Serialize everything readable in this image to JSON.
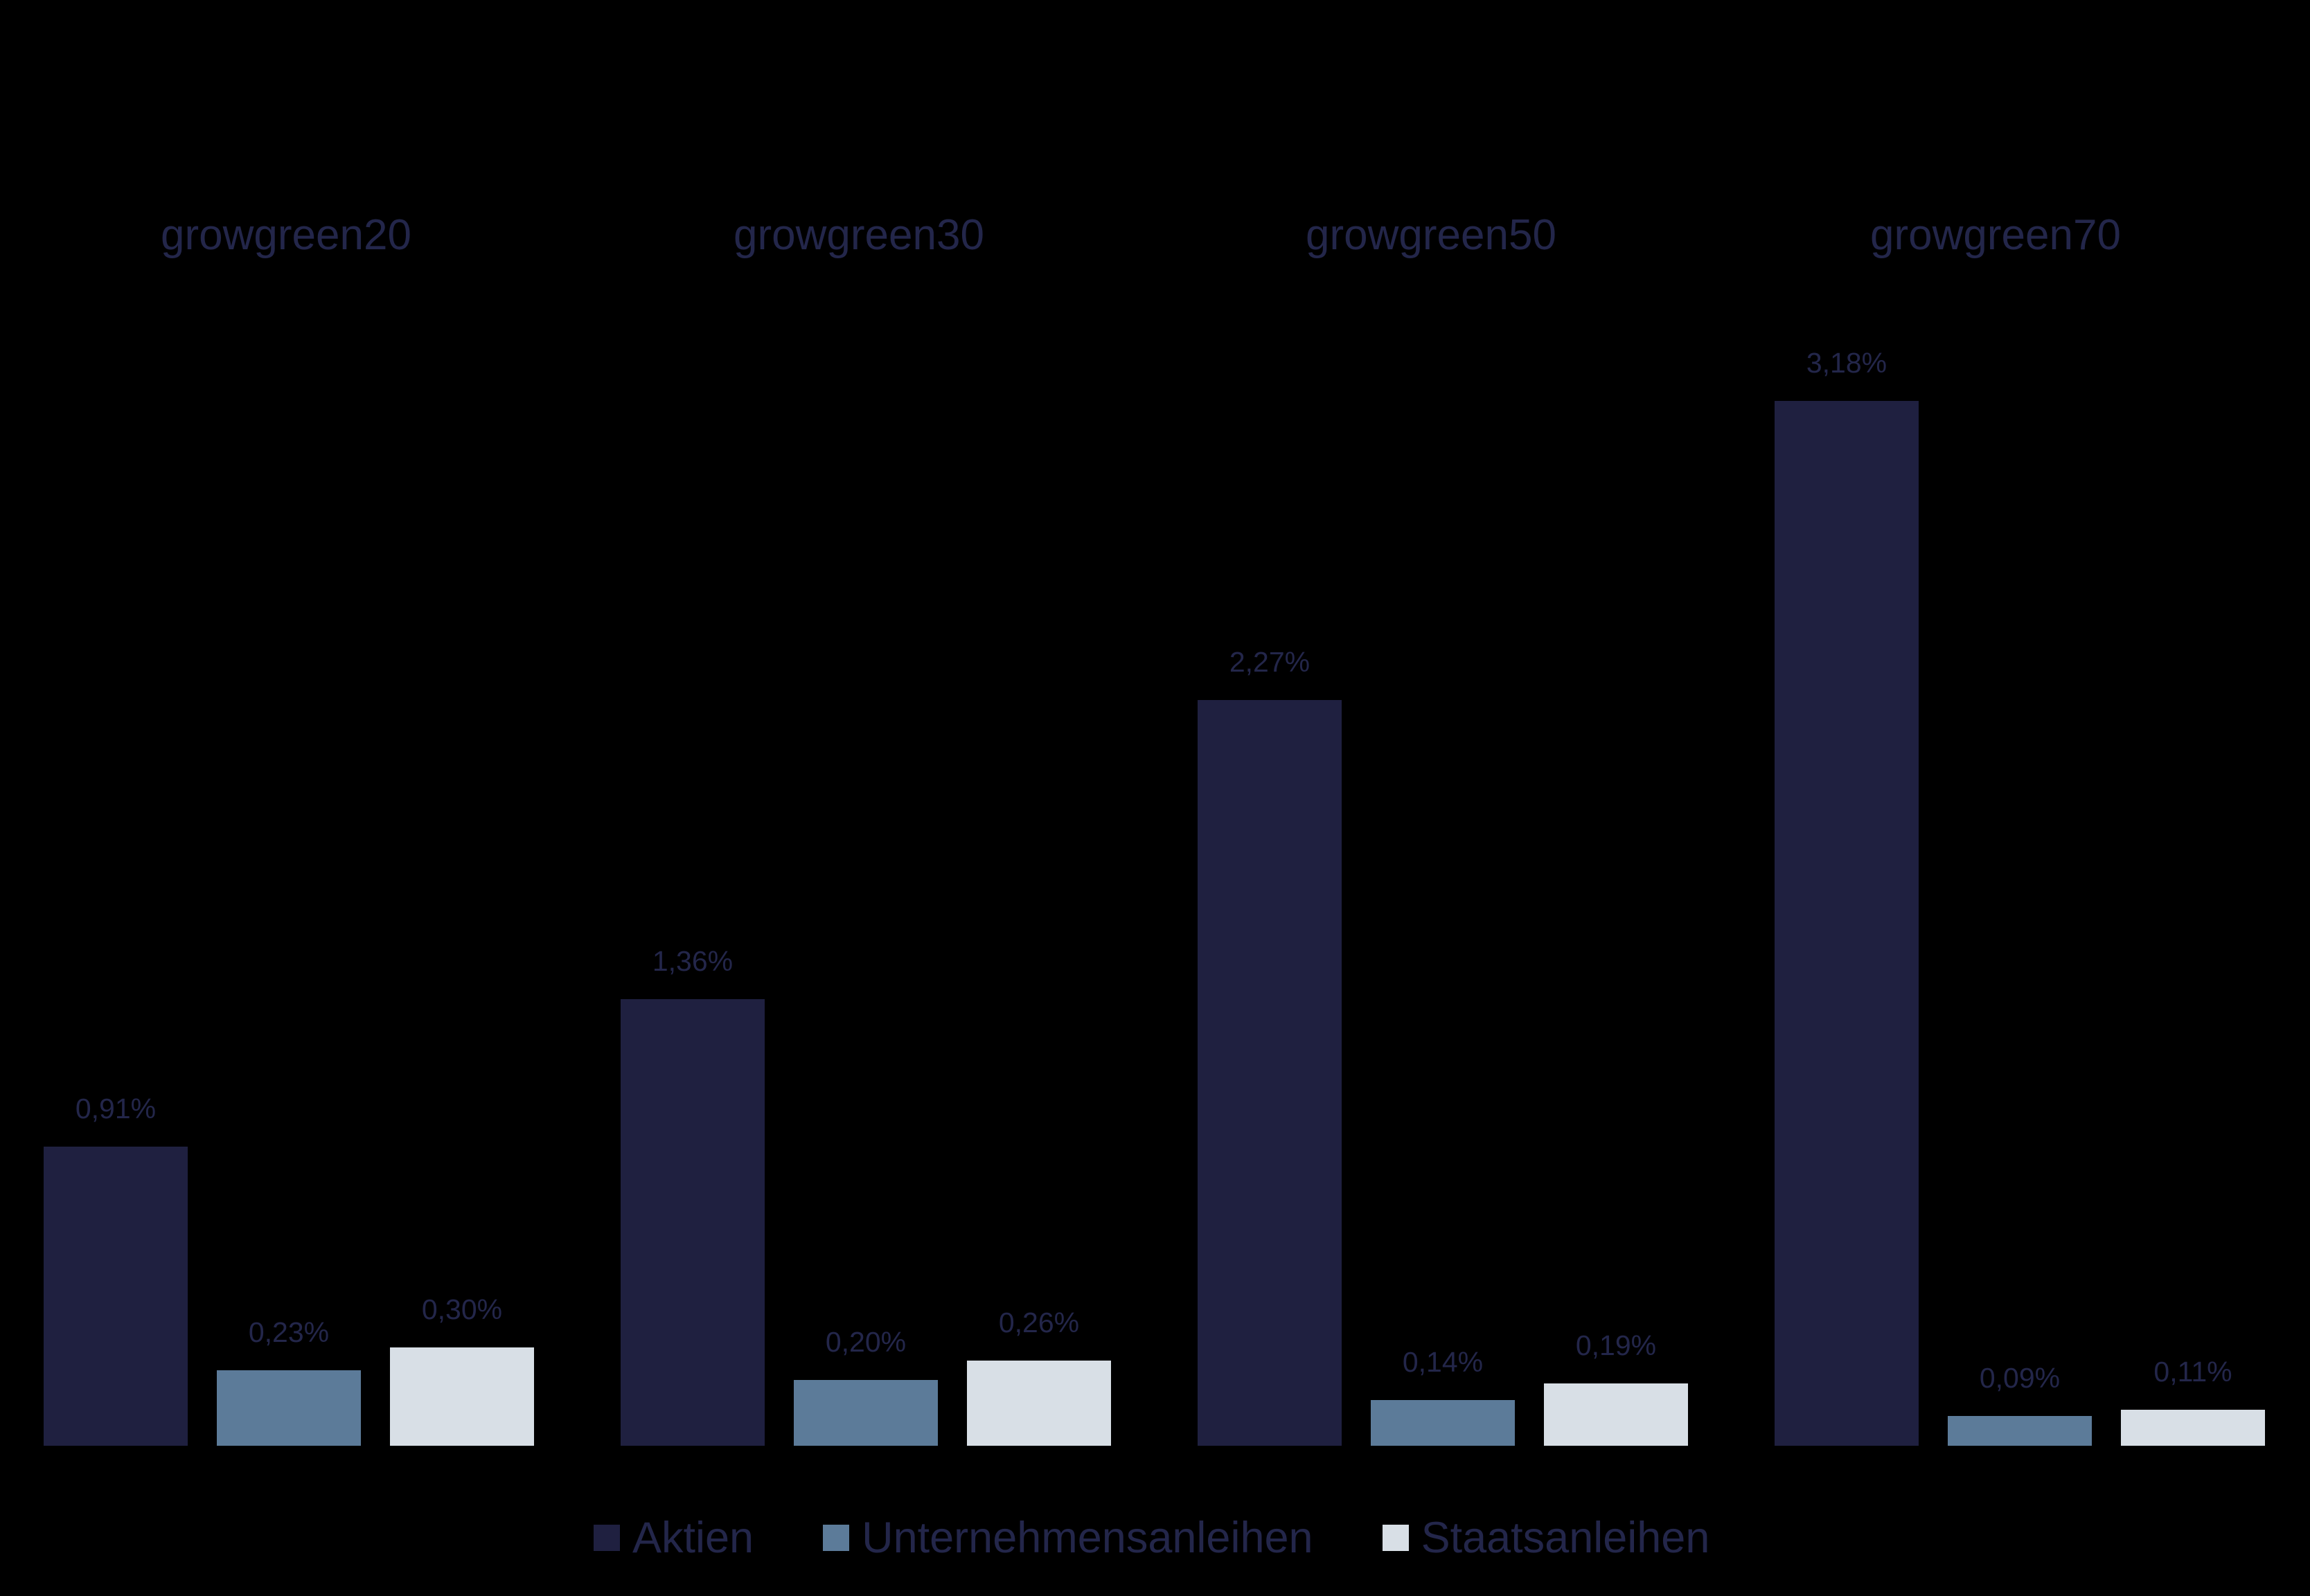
{
  "chart_data": {
    "type": "bar",
    "title": "",
    "xlabel": "",
    "ylabel": "",
    "unit": "%",
    "grid": false,
    "legend_position": "bottom",
    "categories": [
      "growgreen20",
      "growgreen30",
      "growgreen50",
      "growgreen70"
    ],
    "series": [
      {
        "name": "Aktien",
        "color": "#1f2040",
        "values": [
          0.91,
          1.36,
          2.27,
          3.18
        ],
        "labels": [
          "0,91%",
          "1,36%",
          "2,27%",
          "3,18%"
        ]
      },
      {
        "name": "Unternehmensanleihen",
        "color": "#5c7b99",
        "values": [
          0.23,
          0.2,
          0.14,
          0.09
        ],
        "labels": [
          "0,23%",
          "0,20%",
          "0,14%",
          "0,09%"
        ]
      },
      {
        "name": "Staatsanleihen",
        "color": "#d8dfe6",
        "values": [
          0.3,
          0.26,
          0.19,
          0.11
        ],
        "labels": [
          "0,30%",
          "0,26%",
          "0,19%",
          "0,11%"
        ]
      }
    ],
    "ylim": [
      0,
      3.5
    ]
  },
  "colors": {
    "background": "#000000",
    "text": "#23264a"
  },
  "legend": {
    "items": [
      {
        "label": "Aktien",
        "color": "#1f2040"
      },
      {
        "label": "Unternehmensanleihen",
        "color": "#5c7b99"
      },
      {
        "label": "Staatsanleihen",
        "color": "#d8dfe6"
      }
    ]
  }
}
